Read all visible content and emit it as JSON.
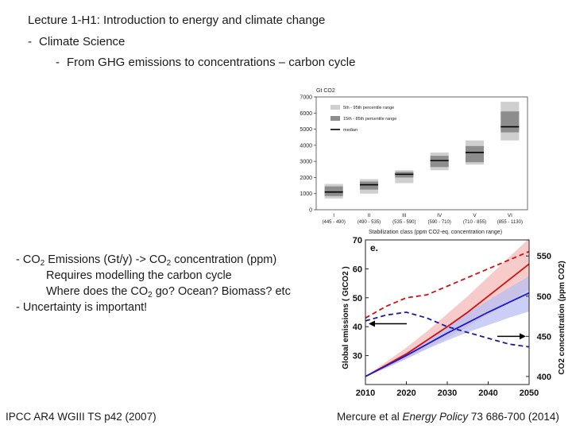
{
  "heading": {
    "lecture": "Lecture 1-H1",
    "topic": ": Introduction to energy and climate change"
  },
  "outline": {
    "level1": "Climate Science",
    "level2": "From GHG emissions to concentrations – carbon cycle",
    "dash": "-"
  },
  "bullets": {
    "b1_part1": "CO",
    "b1_sub1": "2",
    "b1_part2": " Emissions (Gt/y) -> CO",
    "b1_sub2": "2",
    "b1_part3": " concentration (ppm)",
    "b1_line2": "Requires modelling the carbon cycle",
    "b1_line3_part1": "Where does the CO",
    "b1_line3_sub": "2",
    "b1_line3_part2": " go? Ocean? Biomass? etc",
    "b2": "Uncertainty is important!",
    "dash": "-"
  },
  "footer": {
    "left": "IPCC AR4 WGIII TS p42 (2007)",
    "right_author": "Mercure et al ",
    "right_journal": "Energy Policy",
    "right_ref": " 73 686-700 (2014)"
  },
  "chart_data": [
    {
      "type": "box",
      "ylabel": "Gt CO2",
      "xlabel": "Stabilization class (ppm CO2-eq. concentration range)",
      "ylim": [
        0,
        7000
      ],
      "yticks": [
        "0",
        "1000",
        "2000",
        "3000",
        "4000",
        "5000",
        "6000",
        "7000"
      ],
      "categories": [
        "I",
        "II",
        "III",
        "IV",
        "V",
        "VI"
      ],
      "category_ranges": [
        "(445 - 490)",
        "(490 - 535)",
        "(535 - 590)",
        "(590 - 710)",
        "(710 - 855)",
        "(855 - 1130)"
      ],
      "legend": [
        "5th - 95th percentile range",
        "15th - 85th percentile range",
        "median"
      ],
      "p5_95": [
        [
          700,
          1600
        ],
        [
          1000,
          1900
        ],
        [
          1650,
          2450
        ],
        [
          2450,
          3550
        ],
        [
          2800,
          4300
        ],
        [
          4300,
          6700
        ]
      ],
      "p15_85": [
        [
          850,
          1450
        ],
        [
          1250,
          1750
        ],
        [
          2000,
          2350
        ],
        [
          2650,
          3350
        ],
        [
          2950,
          3950
        ],
        [
          4800,
          6100
        ]
      ],
      "median": [
        1100,
        1550,
        2200,
        3050,
        3550,
        5150
      ],
      "colors": {
        "outer": "#cfcfcf",
        "inner": "#8d8d8d",
        "median": "#000000"
      }
    },
    {
      "type": "line",
      "panel_label": "e.",
      "ylabel_left": "Global emissions ( GtCO2 )",
      "ylabel_right": "CO2 concentration (ppm CO2)",
      "ylim_left": [
        20,
        70
      ],
      "yticks_left": [
        "30",
        "40",
        "50",
        "60",
        "70"
      ],
      "ylim_right": [
        390,
        570
      ],
      "yticks_right": [
        "400",
        "450",
        "500",
        "550"
      ],
      "x": [
        2010,
        2015,
        2020,
        2025,
        2030,
        2035,
        2040,
        2045,
        2050
      ],
      "xticks": [
        "2010",
        "2020",
        "2030",
        "2040",
        "2050"
      ],
      "series": [
        {
          "name": "emissions-high",
          "axis": "left",
          "style": "dashed",
          "color": "#d01010",
          "values": [
            43,
            47,
            50,
            51,
            54,
            57,
            60,
            63,
            66
          ]
        },
        {
          "name": "emissions-low",
          "axis": "left",
          "style": "dashed",
          "color": "#1a1aa0",
          "values": [
            42,
            44,
            45,
            43,
            40,
            38,
            36,
            34,
            33
          ]
        },
        {
          "name": "concentration-high",
          "axis": "right",
          "style": "solid",
          "color": "#d01010",
          "values": [
            400,
            414,
            428,
            445,
            462,
            480,
            500,
            520,
            540
          ],
          "band_low": [
            400,
            410,
            422,
            435,
            448,
            462,
            477,
            492,
            508
          ],
          "band_high": [
            400,
            418,
            436,
            456,
            478,
            500,
            524,
            548,
            572
          ]
        },
        {
          "name": "concentration-low",
          "axis": "right",
          "style": "solid",
          "color": "#1a1acc",
          "values": [
            400,
            413,
            426,
            440,
            454,
            467,
            480,
            492,
            504
          ],
          "band_low": [
            400,
            411,
            422,
            434,
            445,
            455,
            464,
            473,
            481
          ],
          "band_high": [
            400,
            415,
            430,
            446,
            463,
            479,
            495,
            510,
            525
          ]
        }
      ],
      "colors": {
        "red_band": "#f6b9b9",
        "blue_band": "#b9bff2",
        "arrow": "#000000"
      }
    }
  ]
}
